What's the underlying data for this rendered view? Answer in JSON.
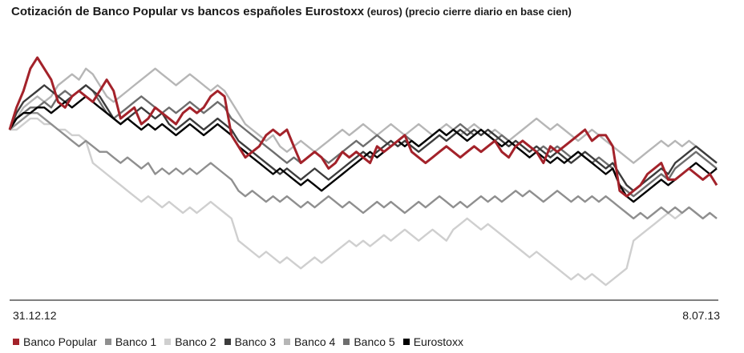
{
  "title": {
    "main": "Cotización de Banco Popular vs bancos españoles Eurostoxx",
    "sub": " (euros) (precio cierre diario en base cien)"
  },
  "chart_data": {
    "type": "line",
    "title": "Cotización de Banco Popular vs bancos españoles Eurostoxx (euros) (precio cierre diario en base cien)",
    "x_start_label": "31.12.12",
    "x_end_label": "8.07.13",
    "ylim": [
      70,
      115
    ],
    "grid": false,
    "legend_position": "bottom",
    "series": [
      {
        "name": "Banco Popular",
        "color": "#a3222a",
        "values": [
          100,
          104,
          107,
          111,
          113,
          111,
          109,
          105,
          104,
          106,
          107,
          106,
          105,
          107,
          109,
          107,
          102,
          103,
          104,
          101,
          102,
          104,
          103,
          102,
          101,
          103,
          104,
          103,
          104,
          106,
          107,
          106,
          99,
          97,
          95,
          96,
          97,
          99,
          100,
          99,
          100,
          97,
          94,
          95,
          96,
          95,
          93,
          94,
          96,
          95,
          96,
          95,
          94,
          97,
          96,
          97,
          98,
          99,
          96,
          95,
          94,
          95,
          96,
          97,
          96,
          95,
          96,
          97,
          96,
          97,
          98,
          96,
          95,
          97,
          98,
          97,
          96,
          94,
          97,
          96,
          97,
          98,
          99,
          100,
          98,
          99,
          99,
          97,
          89,
          88,
          89,
          90,
          92,
          93,
          94,
          91,
          91,
          92,
          93,
          92,
          91,
          92,
          90
        ]
      },
      {
        "name": "Banco 1",
        "color": "#8f8f8f",
        "values": [
          100,
          101,
          102,
          103,
          103,
          102,
          101,
          100,
          99,
          98,
          97,
          98,
          97,
          96,
          96,
          95,
          94,
          95,
          94,
          93,
          94,
          92,
          93,
          92,
          93,
          92,
          93,
          92,
          93,
          94,
          93,
          92,
          91,
          89,
          88,
          89,
          88,
          87,
          88,
          87,
          88,
          87,
          86,
          87,
          86,
          87,
          88,
          87,
          86,
          87,
          86,
          85,
          86,
          87,
          86,
          87,
          86,
          85,
          86,
          87,
          86,
          87,
          88,
          87,
          86,
          87,
          86,
          87,
          88,
          87,
          88,
          87,
          88,
          89,
          88,
          89,
          88,
          87,
          88,
          89,
          88,
          87,
          88,
          87,
          88,
          87,
          88,
          87,
          86,
          85,
          84,
          85,
          84,
          85,
          86,
          85,
          86,
          85,
          86,
          85,
          84,
          85,
          84
        ]
      },
      {
        "name": "Banco 2",
        "color": "#cfcfcf",
        "values": [
          100,
          100,
          101,
          102,
          102,
          101,
          101,
          100,
          100,
          99,
          99,
          98,
          94,
          93,
          92,
          91,
          90,
          89,
          88,
          87,
          88,
          87,
          86,
          87,
          86,
          85,
          86,
          85,
          86,
          87,
          86,
          85,
          84,
          80,
          79,
          78,
          77,
          78,
          77,
          76,
          77,
          76,
          75,
          76,
          77,
          76,
          77,
          78,
          79,
          80,
          79,
          80,
          79,
          80,
          81,
          80,
          81,
          82,
          81,
          80,
          81,
          82,
          81,
          80,
          82,
          83,
          84,
          83,
          82,
          83,
          82,
          81,
          80,
          79,
          78,
          77,
          78,
          77,
          76,
          75,
          74,
          73,
          74,
          73,
          74,
          73,
          72,
          73,
          74,
          75,
          80,
          81,
          82,
          83,
          84,
          85,
          84,
          85,
          86,
          85,
          84,
          85,
          84
        ]
      },
      {
        "name": "Banco 3",
        "color": "#3c3c3c",
        "values": [
          100,
          103,
          105,
          106,
          107,
          108,
          107,
          106,
          105,
          106,
          107,
          108,
          107,
          106,
          104,
          102,
          101,
          102,
          103,
          104,
          103,
          102,
          103,
          101,
          100,
          101,
          102,
          101,
          100,
          101,
          102,
          101,
          100,
          98,
          97,
          96,
          95,
          94,
          93,
          92,
          93,
          92,
          91,
          92,
          93,
          92,
          91,
          92,
          93,
          94,
          95,
          96,
          95,
          96,
          97,
          98,
          97,
          98,
          97,
          96,
          97,
          98,
          99,
          98,
          99,
          100,
          99,
          100,
          99,
          100,
          99,
          98,
          97,
          98,
          97,
          96,
          97,
          96,
          95,
          96,
          95,
          94,
          95,
          96,
          95,
          94,
          93,
          94,
          92,
          90,
          89,
          90,
          91,
          92,
          93,
          92,
          94,
          95,
          96,
          97,
          96,
          95,
          94
        ]
      },
      {
        "name": "Banco 4",
        "color": "#b6b6b6",
        "values": [
          100,
          102,
          104,
          105,
          106,
          105,
          106,
          108,
          109,
          110,
          109,
          111,
          110,
          108,
          106,
          105,
          106,
          107,
          108,
          109,
          110,
          111,
          110,
          109,
          108,
          109,
          110,
          109,
          108,
          107,
          108,
          107,
          105,
          103,
          101,
          100,
          99,
          98,
          99,
          97,
          96,
          97,
          98,
          97,
          96,
          97,
          98,
          99,
          100,
          99,
          100,
          101,
          100,
          99,
          100,
          101,
          100,
          99,
          100,
          101,
          100,
          99,
          100,
          101,
          100,
          99,
          100,
          101,
          100,
          99,
          100,
          99,
          98,
          99,
          100,
          101,
          102,
          101,
          100,
          101,
          100,
          99,
          98,
          99,
          100,
          99,
          98,
          97,
          96,
          95,
          94,
          95,
          96,
          97,
          98,
          97,
          98,
          97,
          98,
          97,
          96,
          95,
          94
        ]
      },
      {
        "name": "Banco 5",
        "color": "#6e6e6e",
        "values": [
          100,
          102,
          103,
          104,
          104,
          105,
          104,
          106,
          107,
          106,
          107,
          108,
          107,
          105,
          103,
          102,
          103,
          104,
          105,
          106,
          105,
          104,
          103,
          104,
          103,
          104,
          105,
          104,
          103,
          104,
          105,
          104,
          102,
          101,
          100,
          99,
          98,
          97,
          96,
          95,
          94,
          95,
          94,
          95,
          96,
          95,
          94,
          95,
          96,
          97,
          98,
          97,
          98,
          99,
          98,
          97,
          98,
          99,
          98,
          97,
          98,
          99,
          100,
          99,
          100,
          101,
          100,
          99,
          100,
          99,
          98,
          99,
          98,
          97,
          98,
          97,
          96,
          97,
          96,
          97,
          96,
          95,
          96,
          95,
          94,
          95,
          94,
          93,
          90,
          89,
          88,
          89,
          90,
          91,
          92,
          91,
          93,
          94,
          95,
          96,
          95,
          94,
          93
        ]
      },
      {
        "name": "Eurostoxx",
        "color": "#000000",
        "values": [
          100,
          102,
          103,
          103,
          104,
          104,
          103,
          104,
          105,
          104,
          105,
          106,
          105,
          104,
          103,
          102,
          101,
          102,
          101,
          100,
          101,
          100,
          101,
          100,
          99,
          100,
          101,
          100,
          99,
          100,
          101,
          100,
          99,
          97,
          96,
          95,
          94,
          93,
          92,
          93,
          92,
          91,
          90,
          91,
          90,
          89,
          90,
          91,
          92,
          93,
          94,
          95,
          96,
          95,
          96,
          97,
          98,
          97,
          98,
          97,
          98,
          99,
          100,
          99,
          100,
          99,
          98,
          99,
          100,
          99,
          98,
          97,
          98,
          97,
          96,
          95,
          96,
          95,
          94,
          95,
          94,
          95,
          96,
          95,
          94,
          93,
          92,
          93,
          90,
          88,
          87,
          88,
          89,
          90,
          91,
          90,
          91,
          92,
          93,
          94,
          93,
          92,
          93
        ]
      }
    ]
  },
  "legend_items": [
    {
      "name": "Banco Popular",
      "color": "#a3222a"
    },
    {
      "name": "Banco 1",
      "color": "#8f8f8f"
    },
    {
      "name": "Banco 2",
      "color": "#cfcfcf"
    },
    {
      "name": "Banco 3",
      "color": "#3c3c3c"
    },
    {
      "name": "Banco 4",
      "color": "#b6b6b6"
    },
    {
      "name": "Banco 5",
      "color": "#6e6e6e"
    },
    {
      "name": "Eurostoxx",
      "color": "#000000"
    }
  ]
}
